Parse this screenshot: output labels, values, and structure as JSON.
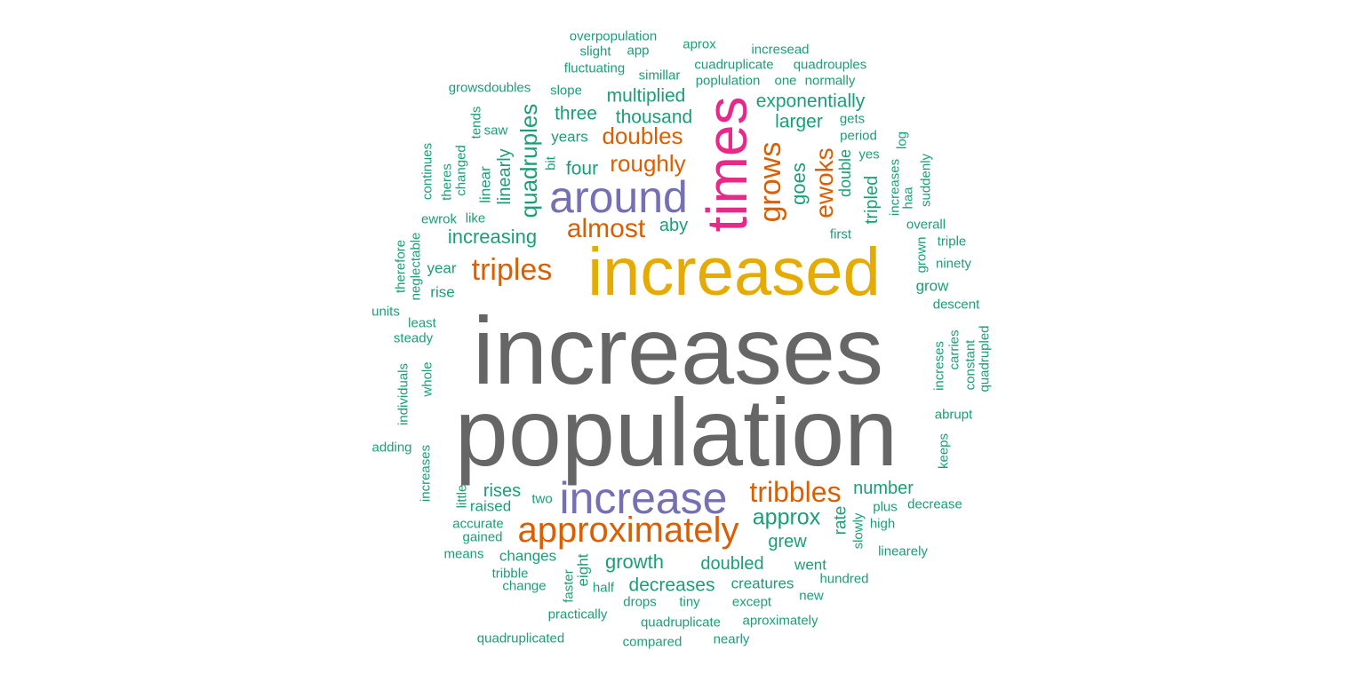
{
  "palette": {
    "gray": "#666666",
    "gold": "#E6AB02",
    "magenta": "#E7298A",
    "purple": "#7570B3",
    "orange": "#D95F02",
    "teal": "#1B9E77"
  },
  "words": [
    {
      "text": "increases",
      "color": "gray",
      "weight": 100
    },
    {
      "text": "population",
      "color": "gray",
      "weight": 98
    },
    {
      "text": "increased",
      "color": "gold",
      "weight": 72
    },
    {
      "text": "times",
      "color": "magenta",
      "weight": 50
    },
    {
      "text": "around",
      "color": "purple",
      "weight": 38
    },
    {
      "text": "increase",
      "color": "purple",
      "weight": 38
    },
    {
      "text": "approximately",
      "color": "orange",
      "weight": 30
    },
    {
      "text": "tribbles",
      "color": "orange",
      "weight": 26
    },
    {
      "text": "triples",
      "color": "orange",
      "weight": 28
    },
    {
      "text": "grows",
      "color": "orange",
      "weight": 28
    },
    {
      "text": "ewoks",
      "color": "orange",
      "weight": 24
    },
    {
      "text": "almost",
      "color": "orange",
      "weight": 24
    },
    {
      "text": "doubles",
      "color": "orange",
      "weight": 22
    },
    {
      "text": "roughly",
      "color": "orange",
      "weight": 22
    },
    {
      "text": "quadruples",
      "color": "teal",
      "weight": 20
    },
    {
      "text": "approx",
      "color": "teal",
      "weight": 20
    },
    {
      "text": "increasing",
      "color": "teal",
      "weight": 18
    },
    {
      "text": "goes",
      "color": "teal",
      "weight": 18
    },
    {
      "text": "growth",
      "color": "teal",
      "weight": 18
    },
    {
      "text": "decreases",
      "color": "teal",
      "weight": 17
    },
    {
      "text": "exponentially",
      "color": "teal",
      "weight": 17
    },
    {
      "text": "multiplied",
      "color": "teal",
      "weight": 17
    },
    {
      "text": "thousand",
      "color": "teal",
      "weight": 17
    },
    {
      "text": "larger",
      "color": "teal",
      "weight": 17
    },
    {
      "text": "four",
      "color": "teal",
      "weight": 17
    },
    {
      "text": "three",
      "color": "teal",
      "weight": 17
    },
    {
      "text": "tripled",
      "color": "teal",
      "weight": 17
    },
    {
      "text": "grew",
      "color": "teal",
      "weight": 17
    },
    {
      "text": "doubled",
      "color": "teal",
      "weight": 17
    },
    {
      "text": "rises",
      "color": "teal",
      "weight": 17
    },
    {
      "text": "number",
      "color": "teal",
      "weight": 17
    },
    {
      "text": "linearly",
      "color": "teal",
      "weight": 17
    },
    {
      "text": "aby",
      "color": "teal",
      "weight": 17
    },
    {
      "text": "rate",
      "color": "teal",
      "weight": 16
    },
    {
      "text": "double",
      "color": "teal",
      "weight": 15
    },
    {
      "text": "year",
      "color": "teal",
      "weight": 15
    },
    {
      "text": "went",
      "color": "teal",
      "weight": 15
    },
    {
      "text": "creatures",
      "color": "teal",
      "weight": 15
    },
    {
      "text": "changes",
      "color": "teal",
      "weight": 15
    },
    {
      "text": "raised",
      "color": "teal",
      "weight": 15
    },
    {
      "text": "years",
      "color": "teal",
      "weight": 15
    },
    {
      "text": "rise",
      "color": "teal",
      "weight": 15
    },
    {
      "text": "linear",
      "color": "teal",
      "weight": 15
    },
    {
      "text": "grow",
      "color": "teal",
      "weight": 15
    },
    {
      "text": "eight",
      "color": "teal",
      "weight": 15
    },
    {
      "text": "overpopulation",
      "color": "teal",
      "weight": 14
    },
    {
      "text": "slight",
      "color": "teal",
      "weight": 14
    },
    {
      "text": "app",
      "color": "teal",
      "weight": 14
    },
    {
      "text": "aprox",
      "color": "teal",
      "weight": 14
    },
    {
      "text": "incresead",
      "color": "teal",
      "weight": 14
    },
    {
      "text": "fluctuating",
      "color": "teal",
      "weight": 14
    },
    {
      "text": "simillar",
      "color": "teal",
      "weight": 14
    },
    {
      "text": "cuadruplicate",
      "color": "teal",
      "weight": 14
    },
    {
      "text": "quadrouples",
      "color": "teal",
      "weight": 14
    },
    {
      "text": "poplulation",
      "color": "teal",
      "weight": 14
    },
    {
      "text": "one",
      "color": "teal",
      "weight": 14
    },
    {
      "text": "normally",
      "color": "teal",
      "weight": 14
    },
    {
      "text": "growsdoubles",
      "color": "teal",
      "weight": 14
    },
    {
      "text": "slope",
      "color": "teal",
      "weight": 14
    },
    {
      "text": "tends",
      "color": "teal",
      "weight": 14
    },
    {
      "text": "saw",
      "color": "teal",
      "weight": 14
    },
    {
      "text": "gets",
      "color": "teal",
      "weight": 14
    },
    {
      "text": "period",
      "color": "teal",
      "weight": 14
    },
    {
      "text": "log",
      "color": "teal",
      "weight": 14
    },
    {
      "text": "yes",
      "color": "teal",
      "weight": 14
    },
    {
      "text": "continues",
      "color": "teal",
      "weight": 14
    },
    {
      "text": "theres",
      "color": "teal",
      "weight": 14
    },
    {
      "text": "changed",
      "color": "teal",
      "weight": 14
    },
    {
      "text": "bit",
      "color": "teal",
      "weight": 14
    },
    {
      "text": "increases",
      "color": "teal",
      "weight": 14
    },
    {
      "text": "haa",
      "color": "teal",
      "weight": 14
    },
    {
      "text": "suddenly",
      "color": "teal",
      "weight": 14
    },
    {
      "text": "ewrok",
      "color": "teal",
      "weight": 14
    },
    {
      "text": "like",
      "color": "teal",
      "weight": 14
    },
    {
      "text": "overall",
      "color": "teal",
      "weight": 14
    },
    {
      "text": "first",
      "color": "teal",
      "weight": 14
    },
    {
      "text": "triple",
      "color": "teal",
      "weight": 14
    },
    {
      "text": "therefore",
      "color": "teal",
      "weight": 14
    },
    {
      "text": "grown",
      "color": "teal",
      "weight": 14
    },
    {
      "text": "neglectable",
      "color": "teal",
      "weight": 14
    },
    {
      "text": "ninety",
      "color": "teal",
      "weight": 14
    },
    {
      "text": "units",
      "color": "teal",
      "weight": 14
    },
    {
      "text": "descent",
      "color": "teal",
      "weight": 14
    },
    {
      "text": "least",
      "color": "teal",
      "weight": 14
    },
    {
      "text": "steady",
      "color": "teal",
      "weight": 14
    },
    {
      "text": "increses",
      "color": "teal",
      "weight": 14
    },
    {
      "text": "carries",
      "color": "teal",
      "weight": 14
    },
    {
      "text": "constant",
      "color": "teal",
      "weight": 14
    },
    {
      "text": "quadrupled",
      "color": "teal",
      "weight": 14
    },
    {
      "text": "individuals",
      "color": "teal",
      "weight": 14
    },
    {
      "text": "whole",
      "color": "teal",
      "weight": 14
    },
    {
      "text": "abrupt",
      "color": "teal",
      "weight": 14
    },
    {
      "text": "adding",
      "color": "teal",
      "weight": 14
    },
    {
      "text": "keeps",
      "color": "teal",
      "weight": 14
    },
    {
      "text": "increases",
      "color": "teal",
      "weight": 14
    },
    {
      "text": "little",
      "color": "teal",
      "weight": 14
    },
    {
      "text": "two",
      "color": "teal",
      "weight": 14
    },
    {
      "text": "plus",
      "color": "teal",
      "weight": 14
    },
    {
      "text": "decrease",
      "color": "teal",
      "weight": 14
    },
    {
      "text": "accurate",
      "color": "teal",
      "weight": 14
    },
    {
      "text": "slowly",
      "color": "teal",
      "weight": 14
    },
    {
      "text": "high",
      "color": "teal",
      "weight": 14
    },
    {
      "text": "gained",
      "color": "teal",
      "weight": 14
    },
    {
      "text": "means",
      "color": "teal",
      "weight": 14
    },
    {
      "text": "linearely",
      "color": "teal",
      "weight": 14
    },
    {
      "text": "tribble",
      "color": "teal",
      "weight": 14
    },
    {
      "text": "change",
      "color": "teal",
      "weight": 14
    },
    {
      "text": "faster",
      "color": "teal",
      "weight": 14
    },
    {
      "text": "half",
      "color": "teal",
      "weight": 14
    },
    {
      "text": "hundred",
      "color": "teal",
      "weight": 14
    },
    {
      "text": "drops",
      "color": "teal",
      "weight": 14
    },
    {
      "text": "tiny",
      "color": "teal",
      "weight": 14
    },
    {
      "text": "except",
      "color": "teal",
      "weight": 14
    },
    {
      "text": "new",
      "color": "teal",
      "weight": 14
    },
    {
      "text": "practically",
      "color": "teal",
      "weight": 14
    },
    {
      "text": "quadruplicate",
      "color": "teal",
      "weight": 14
    },
    {
      "text": "aproximately",
      "color": "teal",
      "weight": 14
    },
    {
      "text": "quadruplicated",
      "color": "teal",
      "weight": 14
    },
    {
      "text": "compared",
      "color": "teal",
      "weight": 14
    },
    {
      "text": "nearly",
      "color": "teal",
      "weight": 14
    }
  ]
}
